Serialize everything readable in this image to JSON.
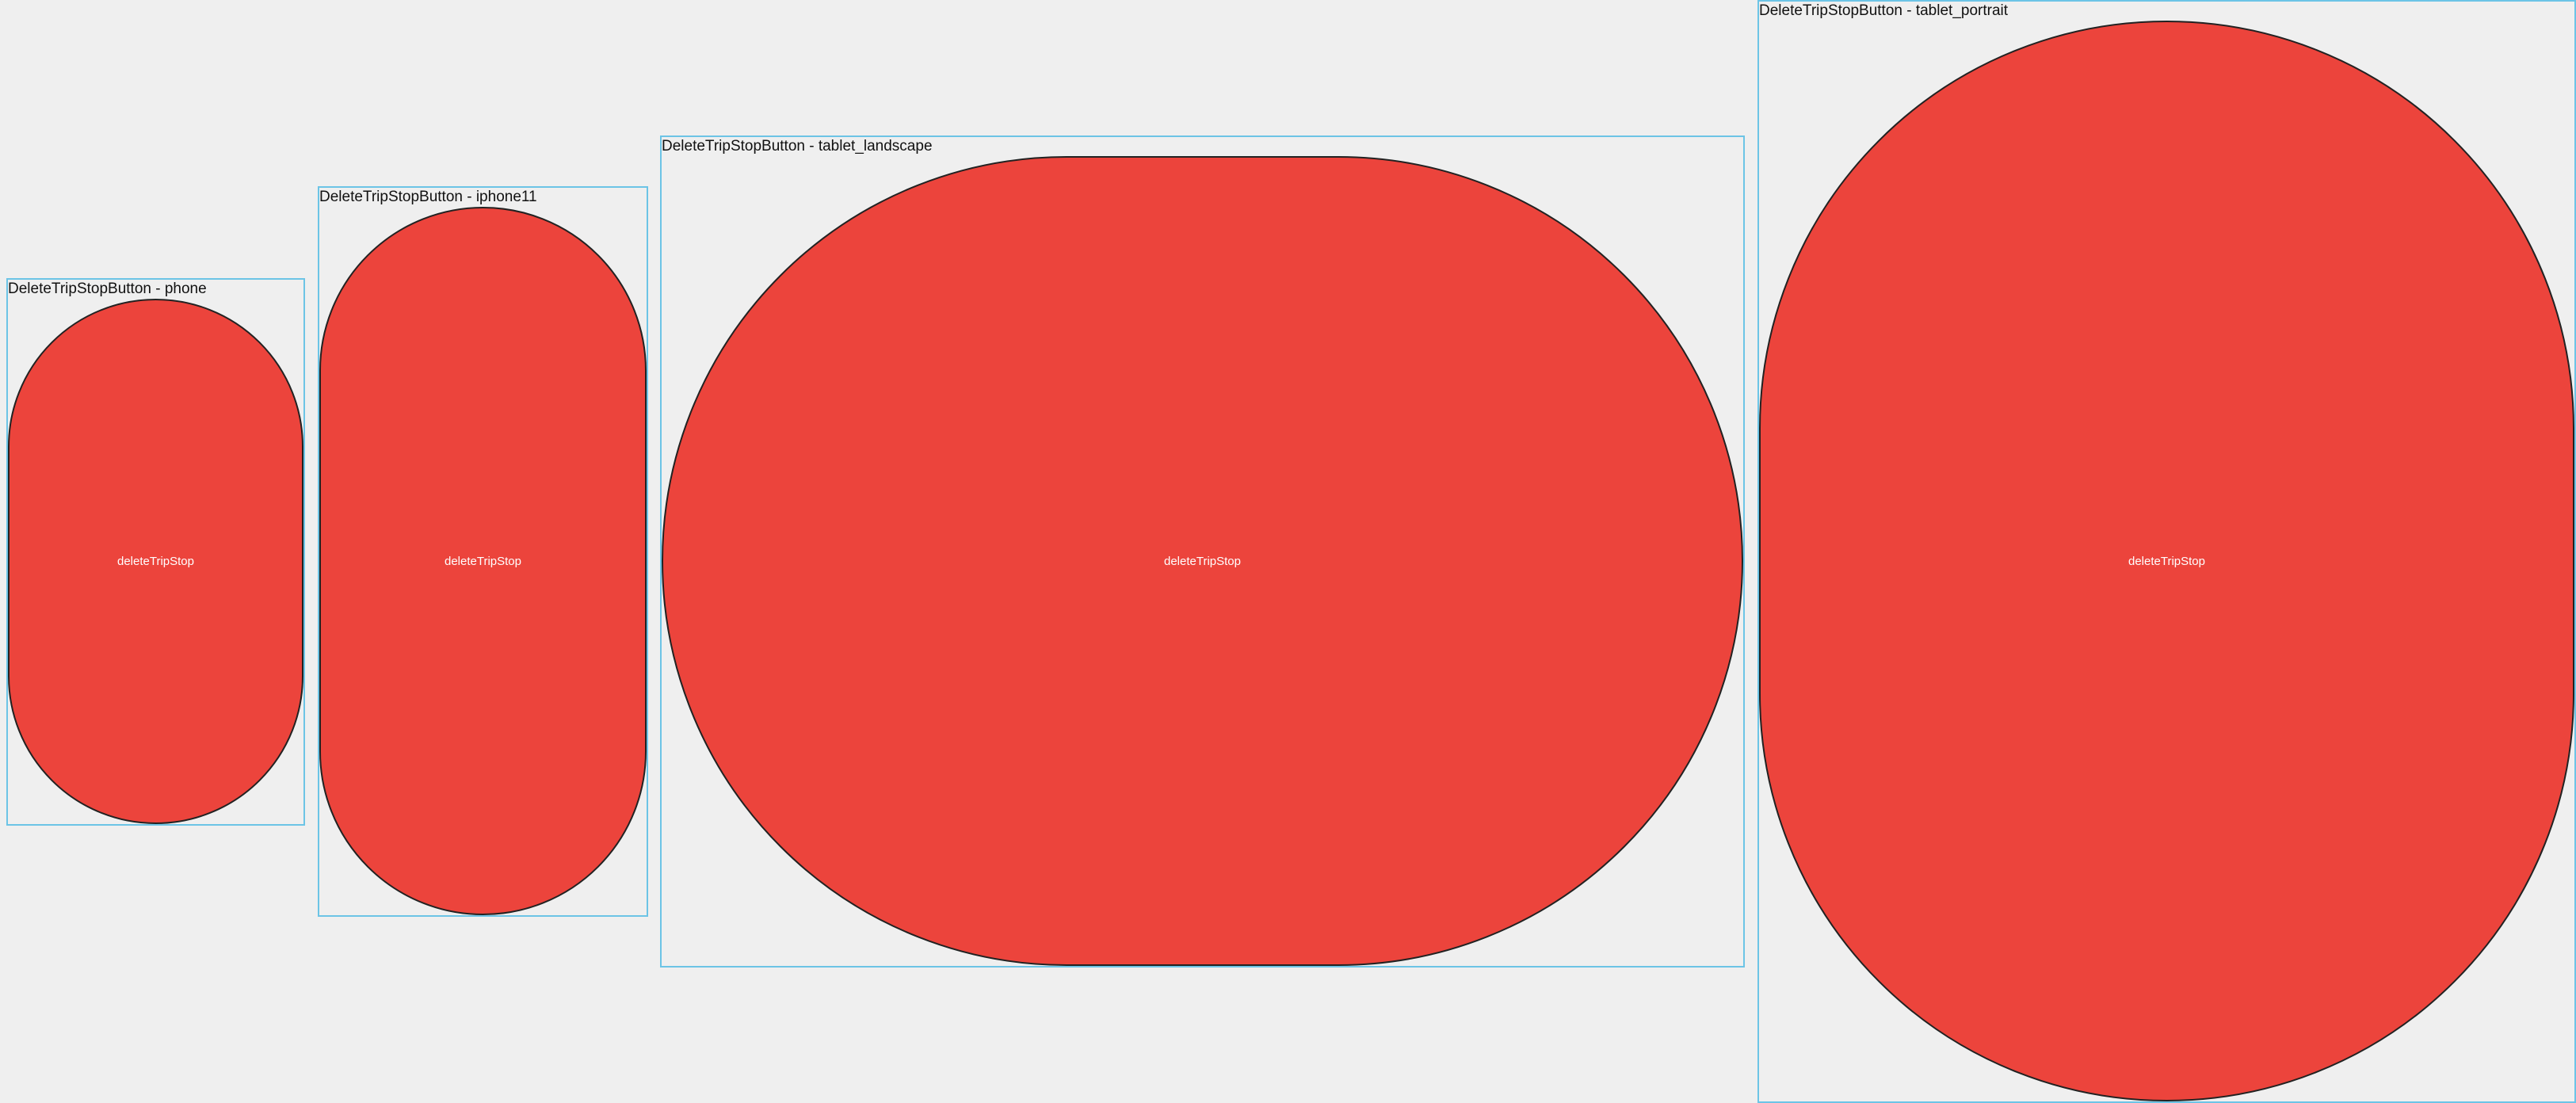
{
  "previews": [
    {
      "title": "DeleteTripStopButton - phone",
      "button_label": "deleteTripStop"
    },
    {
      "title": "DeleteTripStopButton - iphone11",
      "button_label": "deleteTripStop"
    },
    {
      "title": "DeleteTripStopButton - tablet_landscape",
      "button_label": "deleteTripStop"
    },
    {
      "title": "DeleteTripStopButton - tablet_portrait",
      "button_label": "deleteTripStop"
    }
  ],
  "colors": {
    "canvas_background": "#efefef",
    "frame_border": "#6cc4e6",
    "button_fill": "#ec443c",
    "button_border": "#222222",
    "button_text": "#ffffff"
  }
}
